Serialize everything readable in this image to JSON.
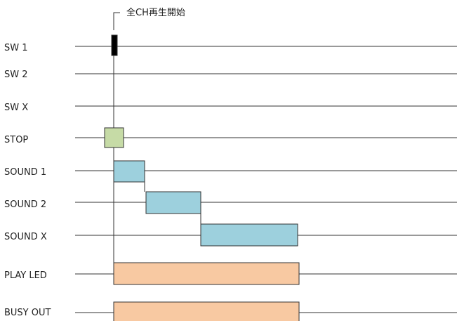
{
  "annotation": "全CH再生開始",
  "signals": [
    {
      "id": "sw1",
      "label": "SW  1"
    },
    {
      "id": "sw2",
      "label": "SW  2"
    },
    {
      "id": "swx",
      "label": "SW  X"
    },
    {
      "id": "stop",
      "label": "STOP"
    },
    {
      "id": "sound1",
      "label": "SOUND 1"
    },
    {
      "id": "sound2",
      "label": "SOUND 2"
    },
    {
      "id": "soundx",
      "label": "SOUND X"
    },
    {
      "id": "playled",
      "label": "PLAY LED"
    },
    {
      "id": "busyout",
      "label": "BUSY OUT"
    }
  ],
  "colors": {
    "sw_pulse": "#000000",
    "stop_pulse": "#c6dba6",
    "sound_pulse": "#9dd0dd",
    "output_pulse": "#f8c9a2",
    "line": "#333333"
  }
}
